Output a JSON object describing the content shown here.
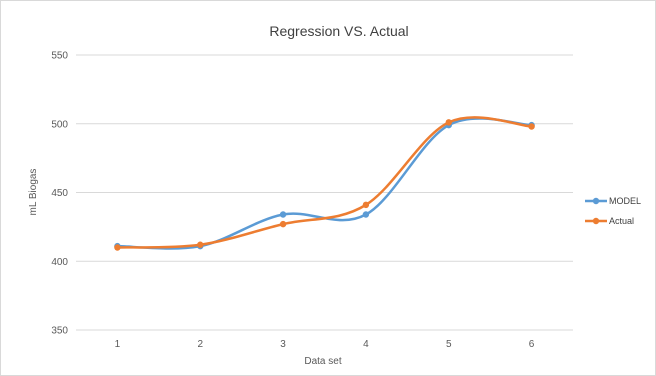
{
  "chart_data": {
    "type": "line",
    "title": "Regression VS. Actual",
    "xlabel": "Data set",
    "ylabel": "mL Biogas",
    "categories": [
      "1",
      "2",
      "3",
      "4",
      "5",
      "6"
    ],
    "yticks": [
      "350",
      "400",
      "450",
      "500",
      "550"
    ],
    "ylim": [
      350,
      550
    ],
    "grid": true,
    "legend_position": "right",
    "smooth": true,
    "series": [
      {
        "name": "MODEL",
        "color": "#5b9bd5",
        "values": [
          411,
          411,
          434,
          434,
          499,
          499
        ]
      },
      {
        "name": "Actual",
        "color": "#ed7d31",
        "values": [
          410,
          412,
          427,
          441,
          501,
          498
        ]
      }
    ]
  }
}
